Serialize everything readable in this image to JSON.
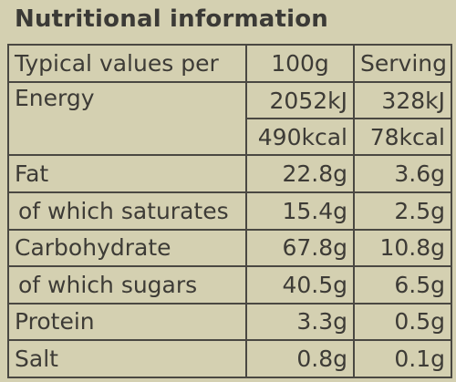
{
  "title": "Nutritional information",
  "header": {
    "label": "Typical values per",
    "col1": "100g",
    "col2": "Serving"
  },
  "energy": {
    "label": "Energy",
    "kj_100g": "2052kJ",
    "kj_serving": "328kJ",
    "kcal_100g": "490kcal",
    "kcal_serving": "78kcal"
  },
  "rows": [
    {
      "label": "Fat",
      "v100": "22.8g",
      "vserv": "3.6g",
      "sub": false
    },
    {
      "label": "of which saturates",
      "v100": "15.4g",
      "vserv": "2.5g",
      "sub": true
    },
    {
      "label": "Carbohydrate",
      "v100": "67.8g",
      "vserv": "10.8g",
      "sub": false
    },
    {
      "label": "of which sugars",
      "v100": "40.5g",
      "vserv": "6.5g",
      "sub": true
    },
    {
      "label": "Protein",
      "v100": "3.3g",
      "vserv": "0.5g",
      "sub": false
    },
    {
      "label": "Salt",
      "v100": "0.8g",
      "vserv": "0.1g",
      "sub": false
    }
  ]
}
